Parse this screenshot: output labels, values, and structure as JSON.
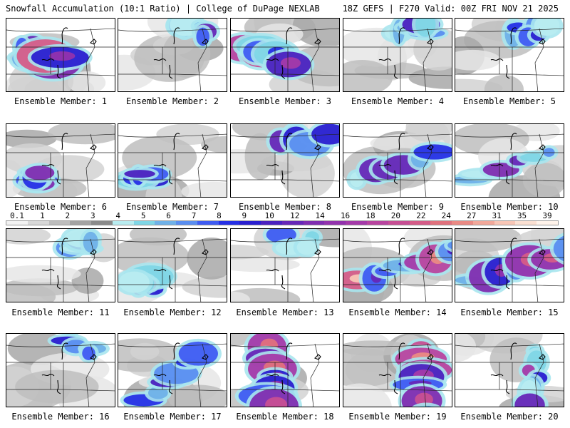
{
  "header": {
    "left": "Snowfall Accumulation (10:1 Ratio) | College of DuPage NEXLAB",
    "right": "18Z GEFS | F270 Valid: 00Z FRI NOV 21 2025"
  },
  "legend": {
    "labels": [
      "0.1",
      "1",
      "2",
      "3",
      "4",
      "5",
      "6",
      "7",
      "8",
      "9",
      "10",
      "12",
      "14",
      "16",
      "18",
      "20",
      "22",
      "24",
      "27",
      "31",
      "35",
      "39"
    ],
    "colors": [
      "#f2f2f2",
      "#d8d8d8",
      "#bdbdbd",
      "#a3a3a3",
      "#8a8a8a",
      "#b8ecf0",
      "#7fd6e6",
      "#6fb1e8",
      "#5a8ef0",
      "#3f5cf2",
      "#2630e6",
      "#2a1fd0",
      "#4b21bf",
      "#6627b7",
      "#7f2db0",
      "#9232ad",
      "#a43aa9",
      "#b8449f",
      "#c74f94",
      "#d55c88",
      "#e0717d",
      "#ea8a84",
      "#f2a89a",
      "#f8c6b6",
      "#fbe0d2",
      "#fff3ea"
    ]
  },
  "panels": [
    {
      "label": "Ensemble Member: 1",
      "intensity": 0.95,
      "region": "west"
    },
    {
      "label": "Ensemble Member: 2",
      "intensity": 0.45,
      "region": "north"
    },
    {
      "label": "Ensemble Member: 3",
      "intensity": 0.85,
      "region": "west"
    },
    {
      "label": "Ensemble Member: 4",
      "intensity": 0.45,
      "region": "north"
    },
    {
      "label": "Ensemble Member: 5",
      "intensity": 0.55,
      "region": "north"
    },
    {
      "label": "Ensemble Member: 6",
      "intensity": 0.55,
      "region": "southwest"
    },
    {
      "label": "Ensemble Member: 7",
      "intensity": 0.45,
      "region": "southwest"
    },
    {
      "label": "Ensemble Member: 8",
      "intensity": 0.5,
      "region": "north"
    },
    {
      "label": "Ensemble Member: 9",
      "intensity": 0.55,
      "region": "band"
    },
    {
      "label": "Ensemble Member: 10",
      "intensity": 0.55,
      "region": "band"
    },
    {
      "label": "Ensemble Member: 11",
      "intensity": 0.45,
      "region": "north"
    },
    {
      "label": "Ensemble Member: 12",
      "intensity": 0.6,
      "region": "southwest"
    },
    {
      "label": "Ensemble Member: 13",
      "intensity": 0.15,
      "region": "north"
    },
    {
      "label": "Ensemble Member: 14",
      "intensity": 0.9,
      "region": "band"
    },
    {
      "label": "Ensemble Member: 15",
      "intensity": 0.9,
      "region": "band"
    },
    {
      "label": "Ensemble Member: 16",
      "intensity": 0.25,
      "region": "north"
    },
    {
      "label": "Ensemble Member: 17",
      "intensity": 0.55,
      "region": "diagonal"
    },
    {
      "label": "Ensemble Member: 18",
      "intensity": 0.95,
      "region": "center"
    },
    {
      "label": "Ensemble Member: 19",
      "intensity": 0.85,
      "region": "east"
    },
    {
      "label": "Ensemble Member: 20",
      "intensity": 0.6,
      "region": "east"
    }
  ]
}
